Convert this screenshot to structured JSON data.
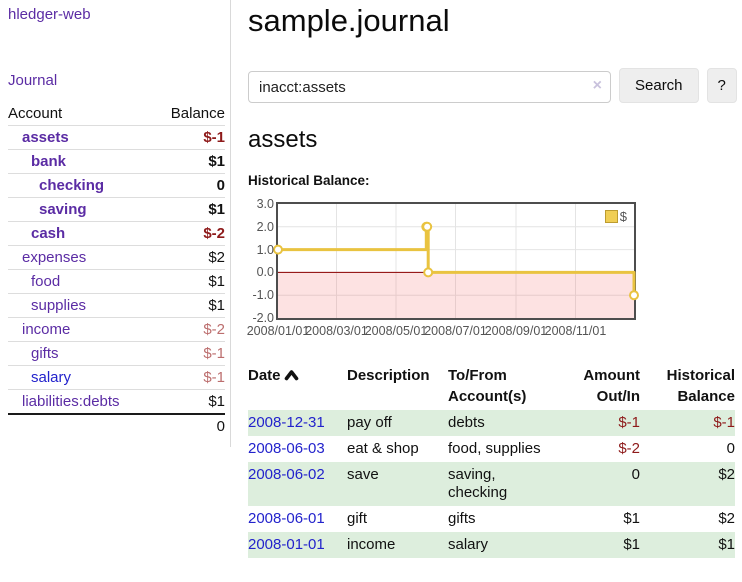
{
  "app": {
    "title": "hledger-web",
    "nav_journal": "Journal"
  },
  "sidebar": {
    "accounts_header": {
      "account": "Account",
      "balance": "Balance"
    },
    "accounts": [
      {
        "name": "assets",
        "level": 1,
        "bold": true,
        "balance": "$-1",
        "link_color": "purple"
      },
      {
        "name": "bank",
        "level": 2,
        "bold": true,
        "balance": "$1",
        "link_color": "purple"
      },
      {
        "name": "checking",
        "level": 3,
        "bold": true,
        "balance": "0",
        "link_color": "purple"
      },
      {
        "name": "saving",
        "level": 3,
        "bold": true,
        "balance": "$1",
        "link_color": "purple"
      },
      {
        "name": "cash",
        "level": 2,
        "bold": true,
        "balance": "$-2",
        "link_color": "purple"
      },
      {
        "name": "expenses",
        "level": 1,
        "bold": false,
        "balance": "$2",
        "link_color": "purple"
      },
      {
        "name": "food",
        "level": 2,
        "bold": false,
        "balance": "$1",
        "link_color": "purple"
      },
      {
        "name": "supplies",
        "level": 2,
        "bold": false,
        "balance": "$1",
        "link_color": "purple"
      },
      {
        "name": "income",
        "level": 1,
        "bold": false,
        "balance": "$-2",
        "link_color": "purple"
      },
      {
        "name": "gifts",
        "level": 2,
        "bold": false,
        "balance": "$-1",
        "link_color": "purple"
      },
      {
        "name": "salary",
        "level": 2,
        "bold": false,
        "balance": "$-1",
        "link_color": "blue"
      },
      {
        "name": "liabilities:debts",
        "level": 1,
        "bold": false,
        "balance": "$1",
        "link_color": "purple"
      }
    ],
    "total": "0"
  },
  "header": {
    "title": "sample.journal"
  },
  "search": {
    "value": "inacct:assets",
    "clear_icon": "×",
    "button": "Search",
    "help_button": "?"
  },
  "account_page": {
    "heading": "assets",
    "chart_label": "Historical Balance:"
  },
  "chart_data": {
    "type": "line",
    "title": "Historical Balance:",
    "series": [
      {
        "name": "$",
        "color": "#e9c340",
        "points": [
          [
            "2008-01-01",
            1
          ],
          [
            "2008-06-01",
            2
          ],
          [
            "2008-06-02",
            2
          ],
          [
            "2008-06-03",
            0
          ],
          [
            "2008-12-31",
            -1
          ]
        ]
      }
    ],
    "step": true,
    "x_ticks": [
      "2008/01/01",
      "2008/03/01",
      "2008/05/01",
      "2008/07/01",
      "2008/09/01",
      "2008/11/01"
    ],
    "y_ticks": [
      3.0,
      2.0,
      1.0,
      0.0,
      -1.0,
      -2.0
    ],
    "xlim": [
      "2008-01-01",
      "2008-12-31"
    ],
    "ylim": [
      -2,
      3
    ],
    "grid": true,
    "legend_position": "top-right",
    "negative_region_color": "#fadada",
    "zero_line_color": "#8b0000"
  },
  "register": {
    "columns": [
      "Date",
      "Description",
      "To/From Account(s)",
      "Amount Out/In",
      "Historical Balance"
    ],
    "sort": {
      "column": "Date",
      "direction": "ascending"
    },
    "rows": [
      {
        "date": "2008-12-31",
        "description": "pay off",
        "accounts": "debts",
        "amount": "$-1",
        "balance": "$-1",
        "green": true
      },
      {
        "date": "2008-06-03",
        "description": "eat & shop",
        "accounts": "food, supplies",
        "amount": "$-2",
        "balance": "0",
        "green": false
      },
      {
        "date": "2008-06-02",
        "description": "save",
        "accounts": "saving, checking",
        "amount": "0",
        "balance": "$2",
        "green": true
      },
      {
        "date": "2008-06-01",
        "description": "gift",
        "accounts": "gifts",
        "amount": "$1",
        "balance": "$2",
        "green": false
      },
      {
        "date": "2008-01-01",
        "description": "income",
        "accounts": "salary",
        "amount": "$1",
        "balance": "$1",
        "green": true
      }
    ]
  },
  "colors": {
    "link_purple": "#5b2ca4",
    "link_blue": "#2323cc",
    "negative_strong": "#8e1a1a",
    "negative_soft": "#bc6e6e",
    "row_green": "#ddeedd",
    "chart_line": "#e9c340"
  }
}
